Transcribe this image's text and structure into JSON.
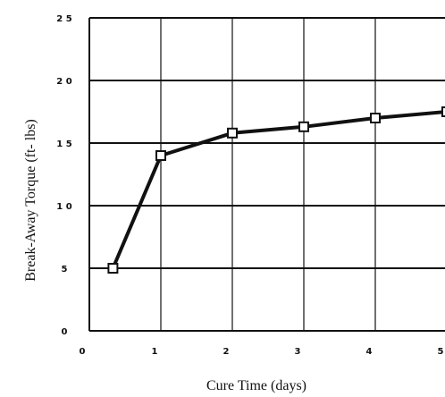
{
  "chart_data": {
    "type": "line",
    "title": "",
    "xlabel": "Cure Time (days)",
    "ylabel": "Break-Away Torque (ft- lbs)",
    "xlim": [
      0,
      5
    ],
    "ylim": [
      0,
      25
    ],
    "x_ticks": [
      0,
      1,
      2,
      3,
      4,
      5
    ],
    "x_tick_labels": [
      "0",
      "1",
      "2",
      "3",
      "4",
      "5"
    ],
    "y_ticks": [
      0,
      5,
      10,
      15,
      20,
      25
    ],
    "y_tick_labels": [
      "0",
      "5",
      "1 0",
      "1 5",
      "2 0",
      "2 5"
    ],
    "grid": true,
    "marker": "open-square",
    "line_color": "#111111",
    "series": [
      {
        "x": [
          0.33,
          1,
          2,
          3,
          4,
          5
        ],
        "y": [
          5,
          14,
          15.8,
          16.3,
          17,
          17.5
        ]
      }
    ]
  }
}
